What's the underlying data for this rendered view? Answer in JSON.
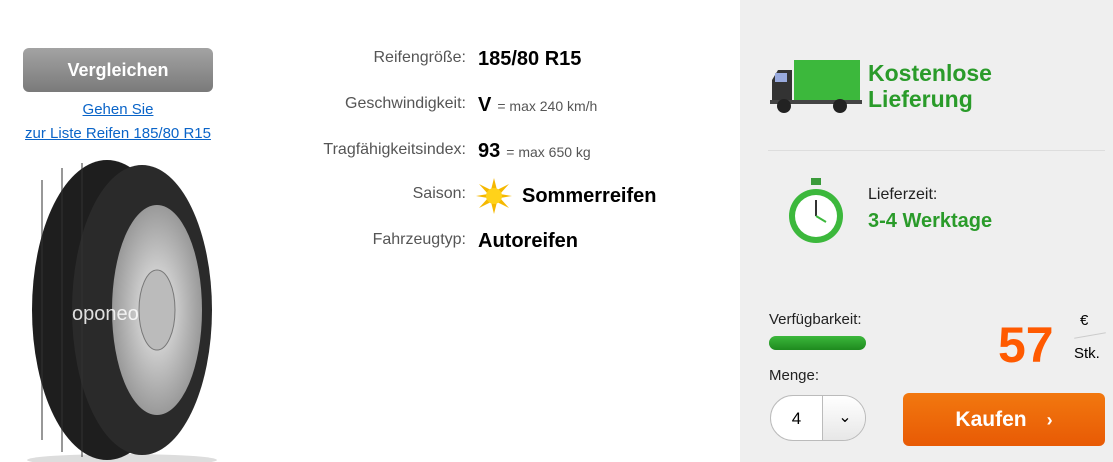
{
  "compare_button": "Vergleichen",
  "list_link": {
    "line1": "Gehen Sie",
    "line2": "zur Liste Reifen 185/80 R15"
  },
  "tire_image": {
    "watermark": "oponeo"
  },
  "specs": [
    {
      "label": "Reifengröße:",
      "value": "185/80 R15",
      "sub": ""
    },
    {
      "label": "Geschwindigkeit:",
      "value": "V",
      "sub": "= max 240 km/h"
    },
    {
      "label": "Tragfähigkeitsindex:",
      "value": "93",
      "sub": "= max 650 kg"
    },
    {
      "label": "Saison:",
      "value": "Sommerreifen",
      "sub": "",
      "icon": "sun-icon"
    },
    {
      "label": "Fahrzeugtyp:",
      "value": "Autoreifen",
      "sub": ""
    }
  ],
  "delivery": {
    "free_line1": "Kostenlose",
    "free_line2": "Lieferung",
    "time_label": "Lieferzeit:",
    "time_value": "3-4 Werktage"
  },
  "availability": {
    "label": "Verfügbarkeit:",
    "level_percent": 100,
    "color": "#2a9b2a"
  },
  "price": {
    "value": "57",
    "currency": "€",
    "unit": "Stk.",
    "color": "#ff5a00"
  },
  "quantity": {
    "label": "Menge:",
    "value": "4"
  },
  "buy_button": "Kaufen"
}
